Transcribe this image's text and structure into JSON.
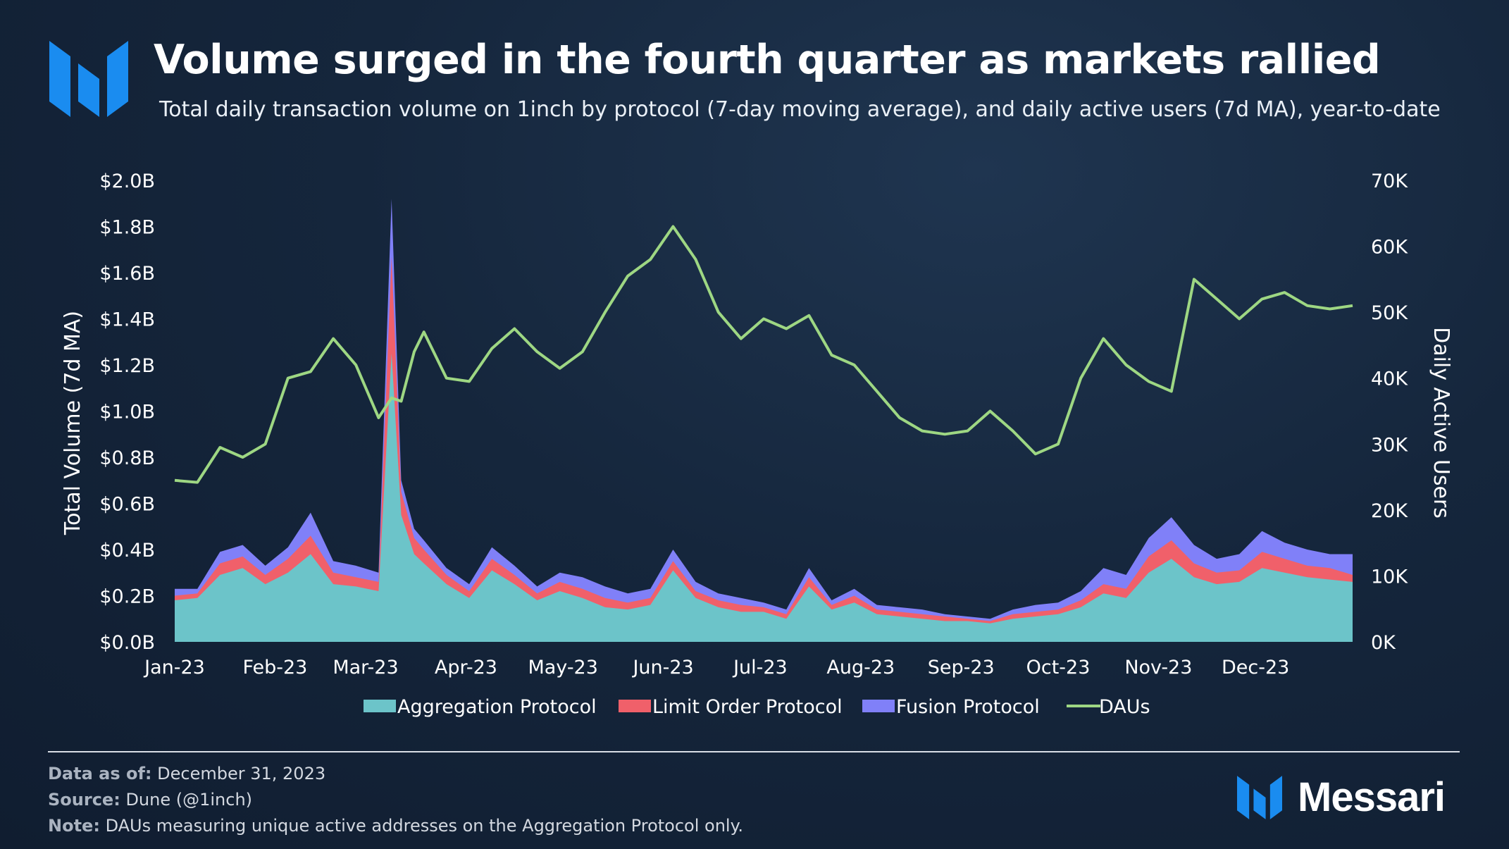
{
  "header": {
    "title": "Volume surged in the fourth quarter as markets rallied",
    "subtitle": "Total daily transaction volume on 1inch by protocol (7-day moving average), and daily active users (7d MA), year-to-date"
  },
  "footer": {
    "data_as_of_label": "Data as of:",
    "data_as_of_value": "December 31, 2023",
    "source_label": "Source:",
    "source_value": "Dune (@1inch)",
    "note_label": "Note:",
    "note_value": "DAUs measuring unique active addresses on the Aggregation Protocol only.",
    "brand": "Messari"
  },
  "colors": {
    "aggregation": "#6cc4c9",
    "limit_order": "#f0606a",
    "fusion": "#8080f8",
    "dau": "#9ed783",
    "brand_blue": "#1a8cf0"
  },
  "icons": {
    "header_logo": "messari-logo-icon",
    "footer_logo": "messari-logo-icon"
  },
  "chart_data": {
    "type": "area",
    "stacked": true,
    "x_unit": "2023 week start",
    "x": [
      "2023-01-01",
      "2023-01-08",
      "2023-01-15",
      "2023-01-22",
      "2023-01-29",
      "2023-02-05",
      "2023-02-12",
      "2023-02-19",
      "2023-02-26",
      "2023-03-05",
      "2023-03-09",
      "2023-03-12",
      "2023-03-16",
      "2023-03-19",
      "2023-03-26",
      "2023-04-02",
      "2023-04-09",
      "2023-04-16",
      "2023-04-23",
      "2023-04-30",
      "2023-05-07",
      "2023-05-14",
      "2023-05-21",
      "2023-05-28",
      "2023-06-04",
      "2023-06-11",
      "2023-06-18",
      "2023-06-25",
      "2023-07-02",
      "2023-07-09",
      "2023-07-16",
      "2023-07-23",
      "2023-07-30",
      "2023-08-06",
      "2023-08-13",
      "2023-08-20",
      "2023-08-27",
      "2023-09-03",
      "2023-09-10",
      "2023-09-17",
      "2023-09-24",
      "2023-10-01",
      "2023-10-08",
      "2023-10-15",
      "2023-10-22",
      "2023-10-29",
      "2023-11-05",
      "2023-11-12",
      "2023-11-19",
      "2023-11-26",
      "2023-12-03",
      "2023-12-10",
      "2023-12-17",
      "2023-12-24",
      "2023-12-31"
    ],
    "x_ticks": [
      "Jan-23",
      "Feb-23",
      "Mar-23",
      "Apr-23",
      "May-23",
      "Jun-23",
      "Jul-23",
      "Aug-23",
      "Sep-23",
      "Oct-23",
      "Nov-23",
      "Dec-23"
    ],
    "series": [
      {
        "name": "Aggregation Protocol",
        "axis": "left",
        "color": "#6cc4c9",
        "values": [
          0.18,
          0.19,
          0.29,
          0.32,
          0.25,
          0.3,
          0.38,
          0.25,
          0.24,
          0.22,
          1.25,
          0.55,
          0.38,
          0.34,
          0.25,
          0.19,
          0.31,
          0.25,
          0.18,
          0.22,
          0.19,
          0.15,
          0.14,
          0.16,
          0.31,
          0.19,
          0.15,
          0.13,
          0.13,
          0.1,
          0.24,
          0.14,
          0.17,
          0.12,
          0.11,
          0.1,
          0.09,
          0.09,
          0.08,
          0.1,
          0.11,
          0.12,
          0.15,
          0.21,
          0.19,
          0.3,
          0.36,
          0.28,
          0.25,
          0.26,
          0.32,
          0.3,
          0.28,
          0.27,
          0.26
        ]
      },
      {
        "name": "Limit Order Protocol",
        "axis": "left",
        "color": "#f0606a",
        "values": [
          0.02,
          0.02,
          0.05,
          0.05,
          0.04,
          0.06,
          0.08,
          0.05,
          0.04,
          0.04,
          0.42,
          0.1,
          0.07,
          0.06,
          0.04,
          0.03,
          0.05,
          0.04,
          0.03,
          0.04,
          0.04,
          0.04,
          0.03,
          0.03,
          0.04,
          0.03,
          0.03,
          0.03,
          0.02,
          0.02,
          0.04,
          0.02,
          0.03,
          0.02,
          0.02,
          0.02,
          0.02,
          0.01,
          0.01,
          0.02,
          0.02,
          0.02,
          0.03,
          0.04,
          0.04,
          0.07,
          0.08,
          0.06,
          0.05,
          0.05,
          0.07,
          0.06,
          0.05,
          0.05,
          0.03
        ]
      },
      {
        "name": "Fusion Protocol",
        "axis": "left",
        "color": "#8080f8",
        "values": [
          0.03,
          0.02,
          0.05,
          0.05,
          0.04,
          0.05,
          0.1,
          0.05,
          0.05,
          0.04,
          0.25,
          0.05,
          0.04,
          0.04,
          0.03,
          0.03,
          0.05,
          0.04,
          0.03,
          0.04,
          0.05,
          0.05,
          0.04,
          0.04,
          0.05,
          0.04,
          0.03,
          0.03,
          0.02,
          0.02,
          0.04,
          0.02,
          0.03,
          0.02,
          0.02,
          0.02,
          0.01,
          0.01,
          0.01,
          0.02,
          0.03,
          0.03,
          0.04,
          0.07,
          0.06,
          0.08,
          0.1,
          0.08,
          0.06,
          0.07,
          0.09,
          0.07,
          0.07,
          0.06,
          0.09
        ]
      },
      {
        "name": "DAUs",
        "axis": "right",
        "type": "line",
        "color": "#9ed783",
        "values": [
          24500,
          24200,
          29500,
          28000,
          30000,
          40000,
          41000,
          46000,
          42000,
          34000,
          37000,
          36500,
          44000,
          47000,
          40000,
          39500,
          44500,
          47500,
          44000,
          41500,
          44000,
          50000,
          55500,
          58000,
          63000,
          58000,
          50000,
          46000,
          49000,
          47500,
          49500,
          43500,
          42000,
          38000,
          34000,
          32000,
          31500,
          32000,
          35000,
          32000,
          28500,
          30000,
          40000,
          46000,
          42000,
          39500,
          38000,
          55000,
          52000,
          49000,
          52000,
          53000,
          51000,
          50500,
          51000
        ]
      }
    ],
    "y_left": {
      "label": "Total Volume (7d MA)",
      "min": 0,
      "max": 2.0,
      "ticks": [
        "$0.0B",
        "$0.2B",
        "$0.4B",
        "$0.6B",
        "$0.8B",
        "$1.0B",
        "$1.2B",
        "$1.4B",
        "$1.6B",
        "$1.8B",
        "$2.0B"
      ]
    },
    "y_right": {
      "label": "Daily Active Users",
      "min": 0,
      "max": 70000,
      "ticks": [
        "0K",
        "10K",
        "20K",
        "30K",
        "40K",
        "50K",
        "60K",
        "70K"
      ]
    },
    "grid": false,
    "legend_position": "bottom"
  }
}
